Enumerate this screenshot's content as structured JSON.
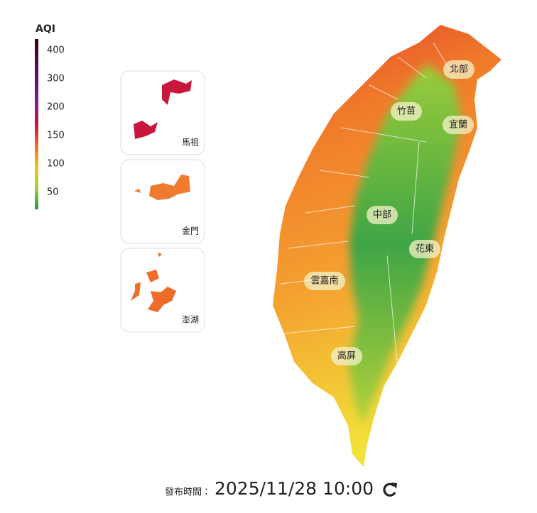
{
  "legend": {
    "title": "AQI",
    "ticks": [
      400,
      300,
      200,
      150,
      100,
      50
    ]
  },
  "insets": [
    {
      "label": "馬祖"
    },
    {
      "label": "金門"
    },
    {
      "label": "澎湖"
    }
  ],
  "regions": [
    {
      "label": "北部"
    },
    {
      "label": "竹苗"
    },
    {
      "label": "宜蘭"
    },
    {
      "label": "中部"
    },
    {
      "label": "花東"
    },
    {
      "label": "雲嘉南"
    },
    {
      "label": "高屏"
    }
  ],
  "footer": {
    "label": "發布時間：",
    "time": "2025/11/28 10:00"
  }
}
